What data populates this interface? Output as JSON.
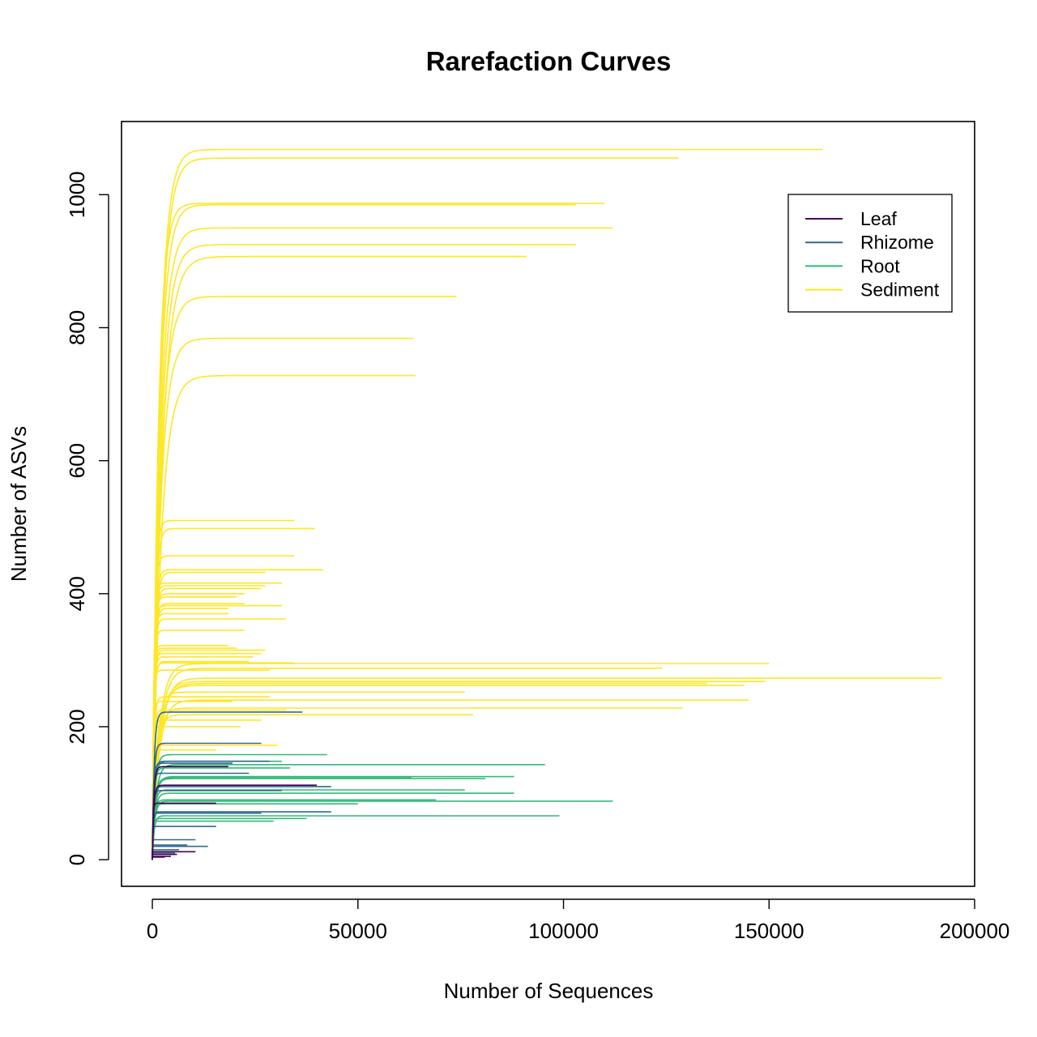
{
  "chart_data": {
    "type": "line",
    "title": "Rarefaction Curves",
    "xlabel": "Number of Sequences",
    "ylabel": "Number of ASVs",
    "xlim": [
      -7500,
      200000
    ],
    "ylim": [
      -40,
      1110
    ],
    "x_ticks": [
      0,
      50000,
      100000,
      150000,
      200000
    ],
    "x_tick_labels": [
      "0",
      "50000",
      "100000",
      "150000",
      "200000"
    ],
    "y_ticks": [
      0,
      200,
      400,
      600,
      800,
      1000
    ],
    "y_tick_labels": [
      "0",
      "200",
      "400",
      "600",
      "800",
      "1000"
    ],
    "grid": false,
    "legend_position": "top-right",
    "legend": [
      {
        "name": "Leaf",
        "color": "#440154"
      },
      {
        "name": "Rhizome",
        "color": "#31688E"
      },
      {
        "name": "Root",
        "color": "#35B779"
      },
      {
        "name": "Sediment",
        "color": "#FDE725"
      }
    ],
    "curve_model": "y = ymax * (1 - exp(-x / k)), k = ymax * d",
    "series": [
      {
        "group": "Sediment",
        "curves": [
          [
            163000,
            1068,
            1.6
          ],
          [
            128000,
            1055,
            1.7
          ],
          [
            110000,
            987,
            1.4
          ],
          [
            103000,
            985,
            1.7
          ],
          [
            112000,
            950,
            1.9
          ],
          [
            103000,
            925,
            2.1
          ],
          [
            91000,
            907,
            2.4
          ],
          [
            74000,
            847,
            2.2
          ],
          [
            63500,
            784,
            2.3
          ],
          [
            64000,
            728,
            2.8
          ],
          [
            34500,
            510,
            1.1
          ],
          [
            39500,
            498,
            1.3
          ],
          [
            34500,
            457,
            1.0
          ],
          [
            41500,
            436,
            1.2
          ],
          [
            27500,
            432,
            1.4
          ],
          [
            31500,
            416,
            0.9
          ],
          [
            27500,
            412,
            1.0
          ],
          [
            26500,
            408,
            1.2
          ],
          [
            22500,
            400,
            1.1
          ],
          [
            20500,
            395,
            1.0
          ],
          [
            22500,
            385,
            1.2
          ],
          [
            31500,
            382,
            1.0
          ],
          [
            18500,
            378,
            1.2
          ],
          [
            18500,
            370,
            1.0
          ],
          [
            32500,
            362,
            1.1
          ],
          [
            22500,
            345,
            1.0
          ],
          [
            18500,
            322,
            0.9
          ],
          [
            20500,
            318,
            1.0
          ],
          [
            27500,
            315,
            1.2
          ],
          [
            26500,
            310,
            1.0
          ],
          [
            24500,
            305,
            1.1
          ],
          [
            23500,
            298,
            1.3
          ],
          [
            34500,
            296,
            1.2
          ],
          [
            150000,
            295,
            5.5
          ],
          [
            124000,
            288,
            6.0
          ],
          [
            28500,
            285,
            1.0
          ],
          [
            192000,
            273,
            6.5
          ],
          [
            149000,
            268,
            6.0
          ],
          [
            135000,
            265,
            6.2
          ],
          [
            144000,
            262,
            5.8
          ],
          [
            76000,
            252,
            4.0
          ],
          [
            28500,
            245,
            1.5
          ],
          [
            145000,
            240,
            6.5
          ],
          [
            19500,
            238,
            1.0
          ],
          [
            129000,
            228,
            5.0
          ],
          [
            78000,
            218,
            4.5
          ],
          [
            32500,
            225,
            1.5
          ],
          [
            26500,
            210,
            1.3
          ],
          [
            21500,
            200,
            1.0
          ],
          [
            30500,
            172,
            1.2
          ],
          [
            15500,
            165,
            1.0
          ]
        ]
      },
      {
        "group": "Root",
        "curves": [
          [
            95500,
            143,
            6.0
          ],
          [
            88000,
            125,
            6.0
          ],
          [
            63000,
            123,
            5.0
          ],
          [
            81000,
            122,
            5.5
          ],
          [
            76000,
            105,
            5.0
          ],
          [
            88000,
            100,
            6.0
          ],
          [
            69000,
            90,
            5.0
          ],
          [
            112000,
            88,
            6.5
          ],
          [
            50000,
            84,
            4.5
          ],
          [
            99000,
            66,
            6.5
          ],
          [
            42500,
            158,
            4.0
          ],
          [
            31500,
            148,
            3.5
          ],
          [
            33500,
            138,
            3.0
          ],
          [
            37500,
            62,
            4.5
          ],
          [
            29500,
            58,
            3.5
          ]
        ]
      },
      {
        "group": "Rhizome",
        "curves": [
          [
            36500,
            222,
            2.0
          ],
          [
            26500,
            175,
            2.2
          ],
          [
            28500,
            148,
            2.5
          ],
          [
            19500,
            145,
            2.0
          ],
          [
            23500,
            130,
            2.0
          ],
          [
            43500,
            110,
            3.0
          ],
          [
            31500,
            104,
            2.5
          ],
          [
            43500,
            72,
            3.0
          ],
          [
            26500,
            70,
            2.5
          ],
          [
            15500,
            50,
            2.0
          ],
          [
            10500,
            30,
            2.0
          ],
          [
            8500,
            22,
            1.5
          ],
          [
            6500,
            15,
            1.5
          ],
          [
            5500,
            10,
            1.5
          ],
          [
            13500,
            20,
            2.0
          ]
        ]
      },
      {
        "group": "Leaf",
        "curves": [
          [
            10500,
            12,
            1.5
          ],
          [
            6000,
            8,
            1.5
          ],
          [
            4500,
            5,
            1.5
          ],
          [
            3000,
            4,
            1.5
          ],
          [
            18500,
            140,
            2.5
          ],
          [
            40000,
            112,
            3.0
          ],
          [
            15500,
            85,
            2.0
          ]
        ]
      }
    ]
  }
}
